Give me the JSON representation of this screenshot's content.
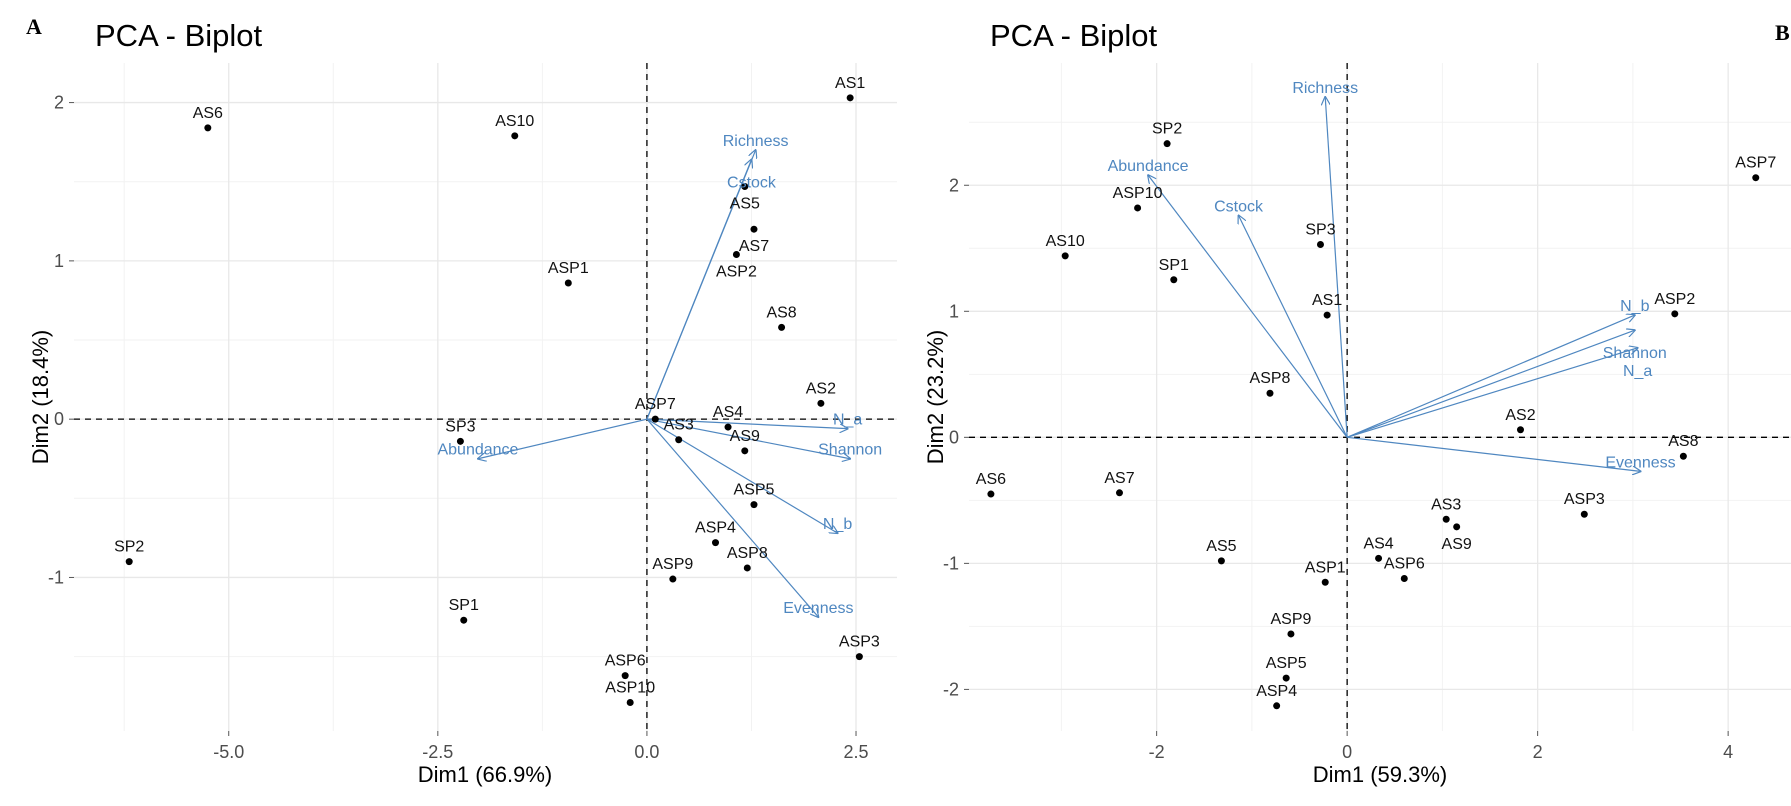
{
  "chart_data": [
    {
      "panel_label": "A",
      "type": "scatter",
      "title": "PCA - Biplot",
      "xlabel": "Dim1 (66.9%)",
      "ylabel": "Dim2 (18.4%)",
      "xlim": [
        -6.85,
        2.99
      ],
      "ylim": [
        -1.97,
        2.25
      ],
      "xticks": [
        -5.0,
        -2.5,
        0.0,
        2.5
      ],
      "xtick_labels": [
        "-5.0",
        "-2.5",
        "0.0",
        "2.5"
      ],
      "yticks": [
        -1,
        0,
        1,
        2
      ],
      "ytick_labels": [
        "-1",
        "0",
        "1",
        "2"
      ],
      "grid": true,
      "point_color": "#000000",
      "arrow_color": "#4f87c0",
      "individuals": [
        {
          "label": "AS1",
          "x": 2.43,
          "y": 2.03
        },
        {
          "label": "AS6",
          "x": -5.25,
          "y": 1.84
        },
        {
          "label": "AS10",
          "x": -1.58,
          "y": 1.79
        },
        {
          "label": "AS5",
          "x": 1.17,
          "y": 1.47
        },
        {
          "label": "AS7",
          "x": 1.28,
          "y": 1.2
        },
        {
          "label": "ASP2",
          "x": 1.07,
          "y": 1.04
        },
        {
          "label": "ASP1",
          "x": -0.94,
          "y": 0.86
        },
        {
          "label": "AS8",
          "x": 1.61,
          "y": 0.58
        },
        {
          "label": "AS2",
          "x": 2.08,
          "y": 0.1
        },
        {
          "label": "ASP7",
          "x": 0.1,
          "y": 0.0
        },
        {
          "label": "AS4",
          "x": 0.97,
          "y": -0.05
        },
        {
          "label": "AS3",
          "x": 0.38,
          "y": -0.13
        },
        {
          "label": "AS9",
          "x": 1.17,
          "y": -0.2
        },
        {
          "label": "SP3",
          "x": -2.23,
          "y": -0.14
        },
        {
          "label": "ASP5",
          "x": 1.28,
          "y": -0.54
        },
        {
          "label": "ASP4",
          "x": 0.82,
          "y": -0.78
        },
        {
          "label": "ASP8",
          "x": 1.2,
          "y": -0.94
        },
        {
          "label": "ASP9",
          "x": 0.31,
          "y": -1.01
        },
        {
          "label": "SP2",
          "x": -6.19,
          "y": -0.9
        },
        {
          "label": "SP1",
          "x": -2.19,
          "y": -1.27
        },
        {
          "label": "ASP3",
          "x": 2.54,
          "y": -1.5
        },
        {
          "label": "ASP6",
          "x": -0.26,
          "y": -1.62
        },
        {
          "label": "ASP10",
          "x": -0.2,
          "y": -1.79
        }
      ],
      "variables": [
        {
          "label": "Richness",
          "x": 1.3,
          "y": 1.7
        },
        {
          "label": "Cstock",
          "x": 1.25,
          "y": 1.64
        },
        {
          "label": "Abundance",
          "x": -2.02,
          "y": -0.25
        },
        {
          "label": "N_a",
          "x": 2.4,
          "y": -0.06
        },
        {
          "label": "Shannon",
          "x": 2.43,
          "y": -0.25
        },
        {
          "label": "N_b",
          "x": 2.28,
          "y": -0.72
        },
        {
          "label": "Evenness",
          "x": 2.05,
          "y": -1.25
        }
      ]
    },
    {
      "panel_label": "B",
      "type": "scatter",
      "title": "PCA - Biplot",
      "xlabel": "Dim1 (59.3%)",
      "ylabel": "Dim2 (23.2%)",
      "xlim": [
        -3.97,
        4.66
      ],
      "ylim": [
        -2.33,
        2.97
      ],
      "xticks": [
        -2,
        0,
        2,
        4
      ],
      "xtick_labels": [
        "-2",
        "0",
        "2",
        "4"
      ],
      "yticks": [
        -2,
        -1,
        0,
        1,
        2
      ],
      "ytick_labels": [
        "-2",
        "-1",
        "0",
        "1",
        "2"
      ],
      "grid": true,
      "point_color": "#000000",
      "arrow_color": "#4f87c0",
      "individuals": [
        {
          "label": "ASP7",
          "x": 4.29,
          "y": 2.06
        },
        {
          "label": "SP2",
          "x": -1.89,
          "y": 2.33
        },
        {
          "label": "ASP10",
          "x": -2.2,
          "y": 1.82
        },
        {
          "label": "AS10",
          "x": -2.96,
          "y": 1.44
        },
        {
          "label": "SP3",
          "x": -0.28,
          "y": 1.53
        },
        {
          "label": "SP1",
          "x": -1.82,
          "y": 1.25
        },
        {
          "label": "AS1",
          "x": -0.21,
          "y": 0.97
        },
        {
          "label": "ASP2",
          "x": 3.44,
          "y": 0.98
        },
        {
          "label": "ASP8",
          "x": -0.81,
          "y": 0.35
        },
        {
          "label": "AS2",
          "x": 1.82,
          "y": 0.06
        },
        {
          "label": "AS8",
          "x": 3.53,
          "y": -0.15
        },
        {
          "label": "AS6",
          "x": -3.74,
          "y": -0.45
        },
        {
          "label": "AS7",
          "x": -2.39,
          "y": -0.44
        },
        {
          "label": "AS3",
          "x": 1.04,
          "y": -0.65
        },
        {
          "label": "AS9",
          "x": 1.15,
          "y": -0.71
        },
        {
          "label": "ASP3",
          "x": 2.49,
          "y": -0.61
        },
        {
          "label": "AS4",
          "x": 0.33,
          "y": -0.96
        },
        {
          "label": "ASP6",
          "x": 0.6,
          "y": -1.12
        },
        {
          "label": "AS5",
          "x": -1.32,
          "y": -0.98
        },
        {
          "label": "ASP1",
          "x": -0.23,
          "y": -1.15
        },
        {
          "label": "ASP9",
          "x": -0.59,
          "y": -1.56
        },
        {
          "label": "ASP5",
          "x": -0.64,
          "y": -1.91
        },
        {
          "label": "ASP4",
          "x": -0.74,
          "y": -2.13
        }
      ],
      "variables": [
        {
          "label": "Richness",
          "x": -0.23,
          "y": 2.7
        },
        {
          "label": "Abundance",
          "x": -2.09,
          "y": 2.08
        },
        {
          "label": "Cstock",
          "x": -1.14,
          "y": 1.76
        },
        {
          "label": "N_b",
          "x": 3.02,
          "y": 0.97
        },
        {
          "label": "Shannon",
          "x": 3.02,
          "y": 0.85
        },
        {
          "label": "N_a",
          "x": 3.05,
          "y": 0.71
        },
        {
          "label": "Evenness",
          "x": 3.08,
          "y": -0.27
        }
      ]
    }
  ]
}
